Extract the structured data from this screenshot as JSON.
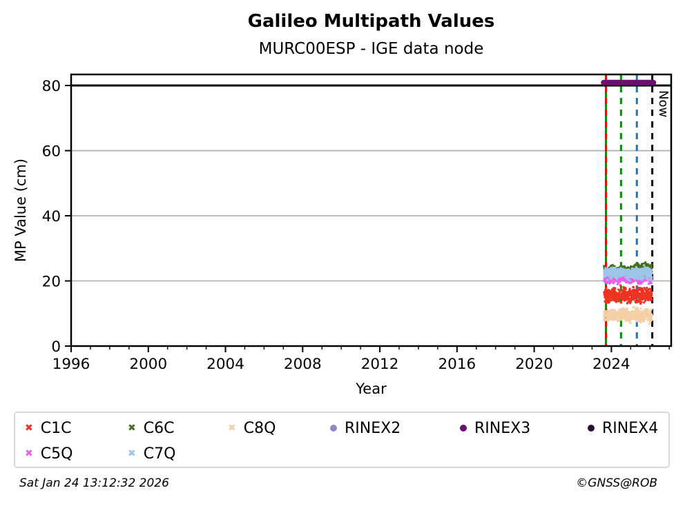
{
  "footer": {
    "timestamp": "Sat Jan 24 13:12:32 2026",
    "copyright": "©GNSS@ROB"
  },
  "legend": {
    "items": [
      {
        "label": "C1C",
        "series": "C1C",
        "row": 0,
        "col": 0
      },
      {
        "label": "C6C",
        "series": "C6C",
        "row": 0,
        "col": 1
      },
      {
        "label": "C8Q",
        "series": "C8Q",
        "row": 0,
        "col": 2
      },
      {
        "label": "RINEX2",
        "series": "RINEX2",
        "row": 0,
        "col": 3
      },
      {
        "label": "RINEX3",
        "series": "RINEX3",
        "row": 0,
        "col": 4
      },
      {
        "label": "RINEX4",
        "series": "RINEX4",
        "row": 0,
        "col": 5
      },
      {
        "label": "C5Q",
        "series": "C5Q",
        "row": 1,
        "col": 0
      },
      {
        "label": "C7Q",
        "series": "C7Q",
        "row": 1,
        "col": 1
      }
    ],
    "col_lefts": [
      34,
      183,
      328,
      476,
      664,
      849
    ],
    "row_tops": [
      604,
      641
    ]
  },
  "chart_data": {
    "type": "scatter",
    "title": "Galileo Multipath Values",
    "subtitle": "MURC00ESP - IGE data node",
    "xlabel": "Year",
    "ylabel": "MP Value (cm)",
    "now_label": "Now",
    "xlim": [
      1996,
      2027.1
    ],
    "ylim": [
      0,
      83.4
    ],
    "xticks_major": [
      1996,
      2000,
      2004,
      2008,
      2012,
      2016,
      2020,
      2024
    ],
    "xticks_minor_step": 1,
    "yticks": [
      0,
      20,
      40,
      60,
      80
    ],
    "grid": {
      "horizontal": [
        20,
        40,
        60,
        80
      ],
      "color": "#b3b3b3"
    },
    "hline": {
      "y": 80,
      "color": "#000000",
      "width": 3
    },
    "event_lines": [
      {
        "x": 2023.72,
        "style": "solid",
        "color": "#0d8a0d",
        "label": ""
      },
      {
        "x": 2023.72,
        "style": "dashed",
        "color": "#dd1111",
        "label": ""
      },
      {
        "x": 2024.5,
        "style": "dashed",
        "color": "#0d8a0d",
        "label": ""
      },
      {
        "x": 2025.32,
        "style": "dashed",
        "color": "#1c74c9",
        "label": ""
      },
      {
        "x": 2026.12,
        "style": "dashed",
        "color": "#000000",
        "label": "Now"
      }
    ],
    "series": [
      {
        "name": "C6C",
        "color": "#47701d",
        "marker": "x",
        "type": "band",
        "segments": [
          {
            "x0": 2023.62,
            "x1": 2025.25,
            "center": 23.2,
            "spread": 1.1
          },
          {
            "x0": 2025.25,
            "x1": 2026.1,
            "center": 24.1,
            "spread": 1.1
          }
        ]
      },
      {
        "name": "C5Q",
        "color": "#ef5fef",
        "marker": "x",
        "type": "band",
        "segments": [
          {
            "x0": 2023.62,
            "x1": 2026.1,
            "center": 20.7,
            "spread": 1.2
          }
        ]
      },
      {
        "name": "C7Q",
        "color": "#9cc5e8",
        "marker": "x",
        "type": "band",
        "segments": [
          {
            "x0": 2023.62,
            "x1": 2026.1,
            "center": 22.4,
            "spread": 1.5
          }
        ]
      },
      {
        "name": "C1C",
        "color": "#ee3322",
        "marker": "x",
        "type": "band",
        "segments": [
          {
            "x0": 2023.62,
            "x1": 2026.1,
            "center": 15.7,
            "spread": 1.9
          }
        ]
      },
      {
        "name": "C8Q",
        "color": "#f5cfa6",
        "marker": "x",
        "type": "band",
        "segments": [
          {
            "x0": 2023.62,
            "x1": 2026.1,
            "center": 9.5,
            "spread": 1.7
          }
        ]
      },
      {
        "name": "RINEX2",
        "color": "#8d88c8",
        "marker": "circle",
        "type": "none"
      },
      {
        "name": "RINEX3",
        "color": "#6e0c72",
        "marker": "circle",
        "type": "line",
        "y": 80.9,
        "x0": 2023.6,
        "x1": 2026.18,
        "width": 8
      },
      {
        "name": "RINEX4",
        "color": "#2a1035",
        "marker": "circle",
        "type": "none"
      }
    ]
  }
}
